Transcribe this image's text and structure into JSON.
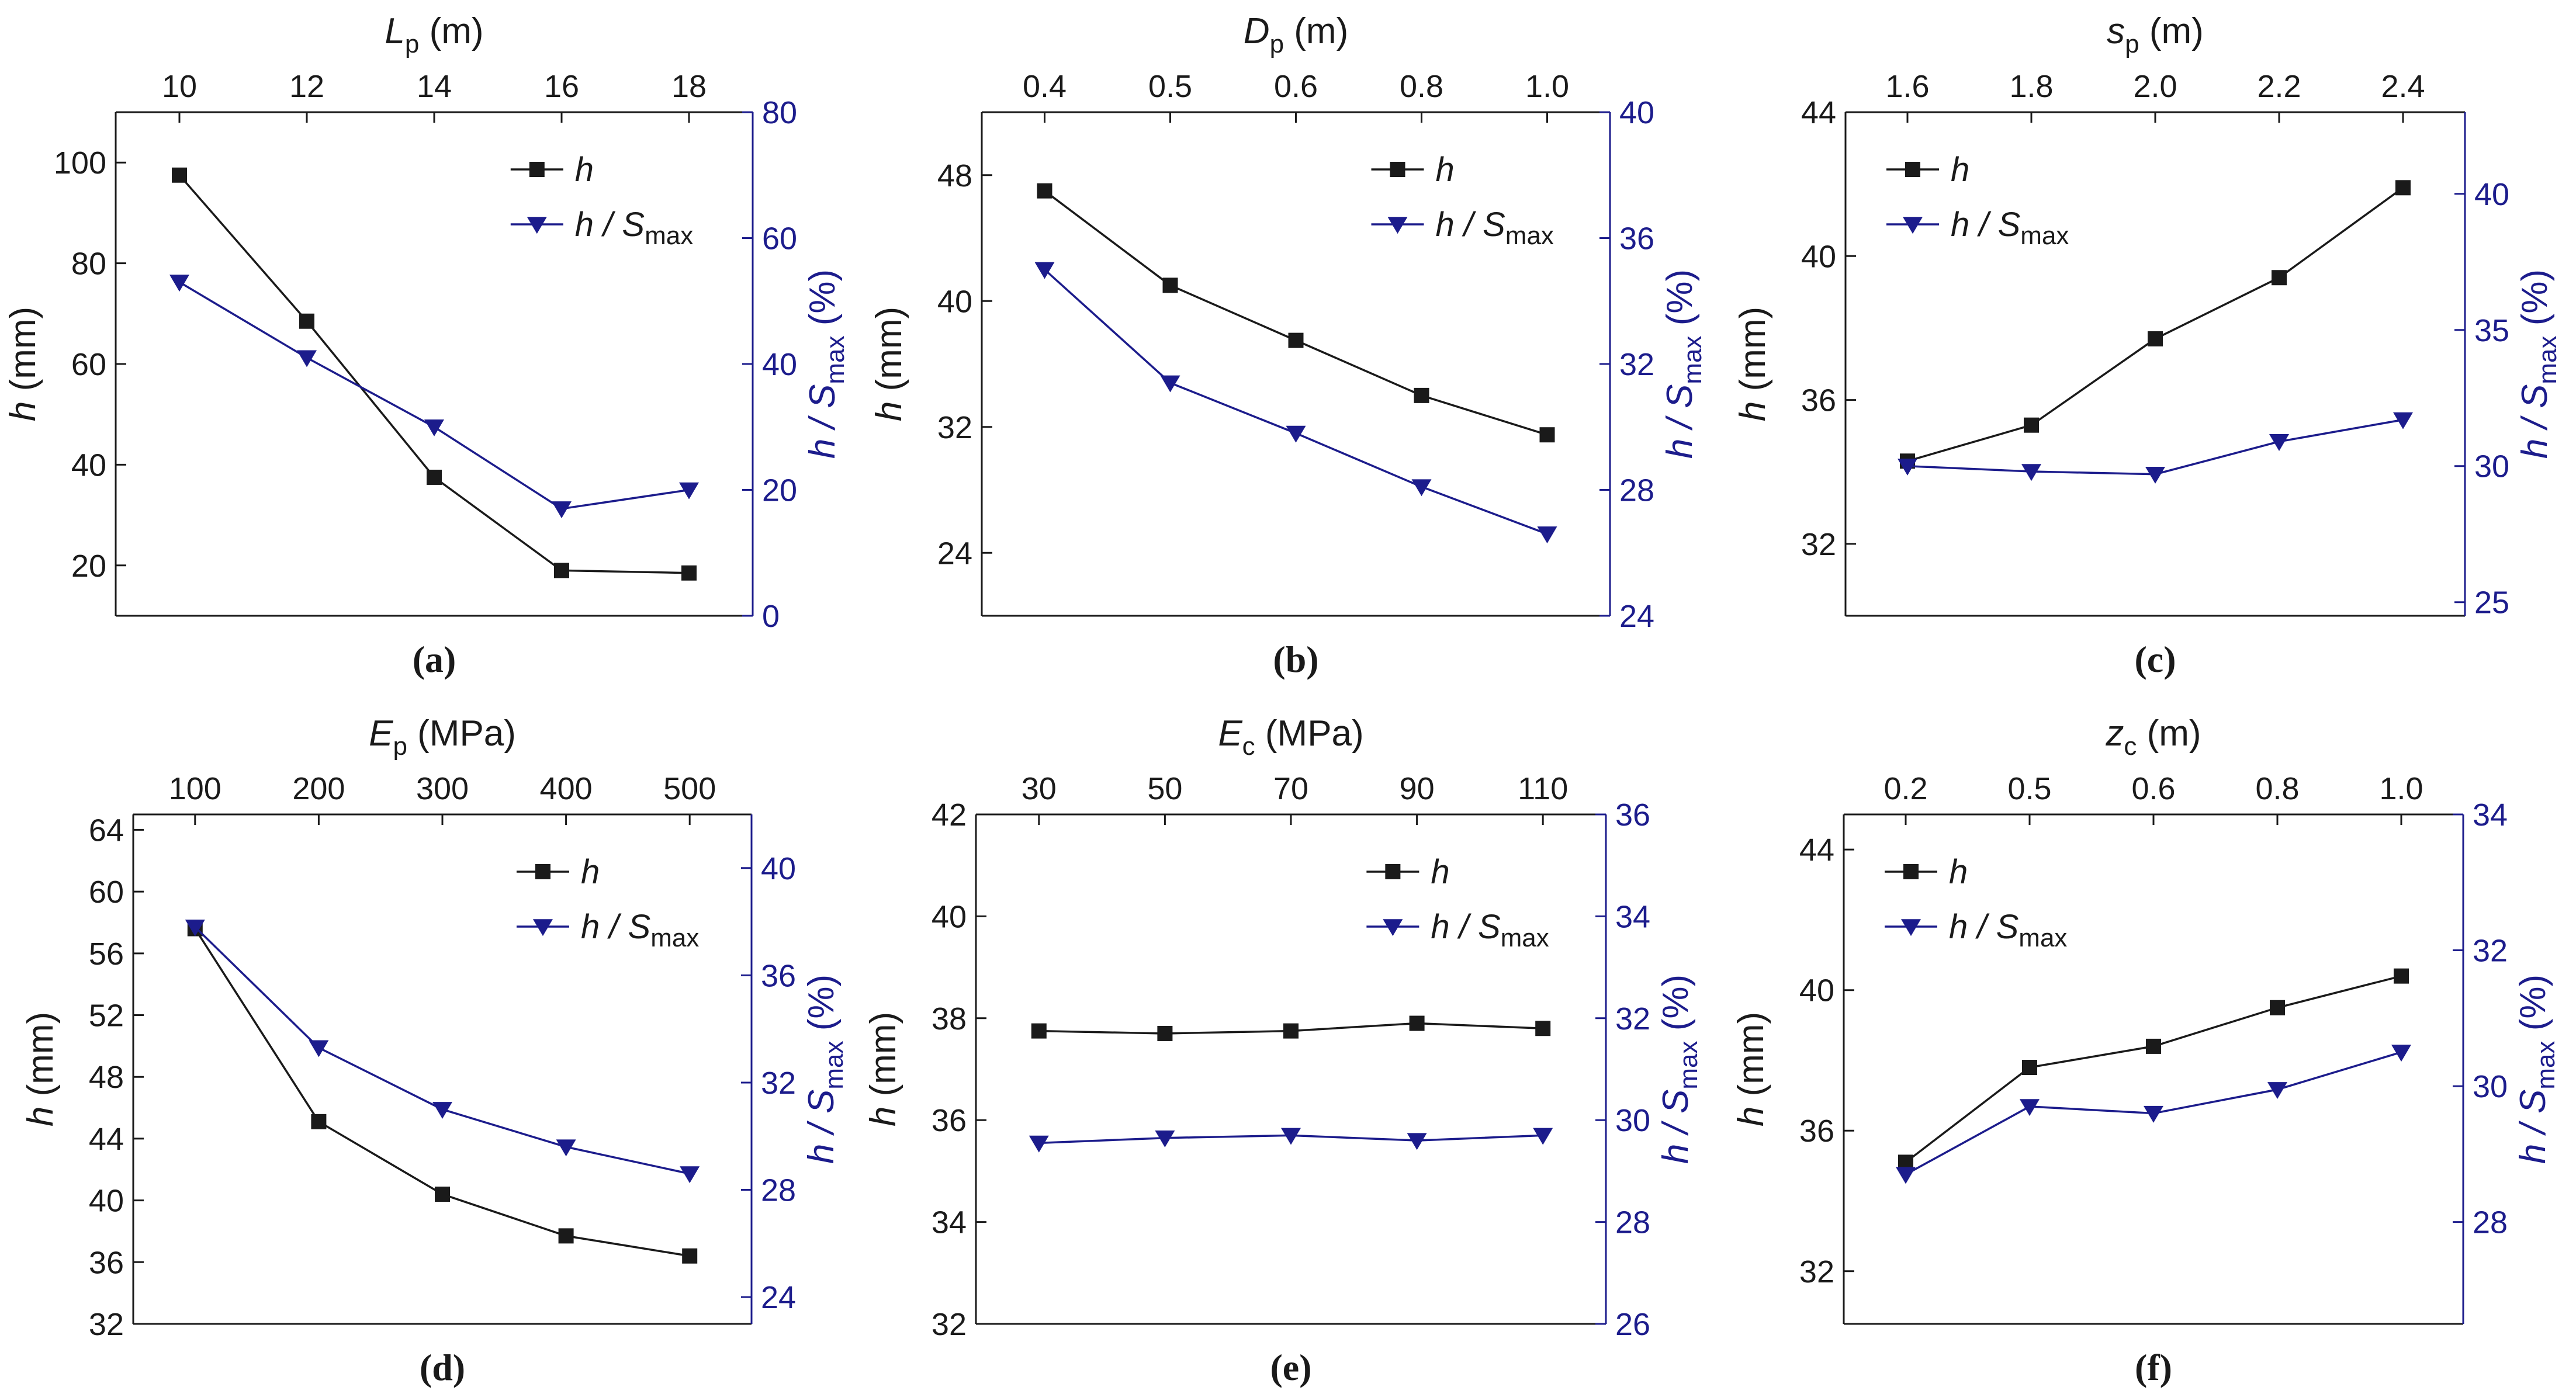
{
  "colors": {
    "h": "#1a1a1a",
    "ratio": "#1c1c8c",
    "axis_left": "#1a1a1a",
    "axis_right": "#1c1c8c"
  },
  "legend": {
    "h": "h",
    "ratio": "h / S",
    "ratio_sub": "max"
  },
  "chart_data": [
    {
      "id": "a",
      "panel_label": "(a)",
      "type": "line",
      "top_label": {
        "main": "L",
        "sub": "p",
        "unit": " (m)"
      },
      "top_ticks": [
        "10",
        "12",
        "14",
        "16",
        "18"
      ],
      "left_label": "h (mm)",
      "left_ticks": [
        20,
        40,
        60,
        80,
        100
      ],
      "left_lim": [
        10,
        110
      ],
      "right_label": {
        "pre": "h / S",
        "sub": "max",
        "unit": " (%)"
      },
      "right_ticks": [
        0,
        20,
        40,
        60,
        80
      ],
      "right_lim": [
        0,
        80
      ],
      "legend_position": "top-right",
      "series": [
        {
          "name": "h",
          "axis": "left",
          "marker": "square",
          "values": [
            97.5,
            68.5,
            37.5,
            19,
            18.5
          ]
        },
        {
          "name": "h / Smax",
          "axis": "right",
          "marker": "triangle-down",
          "values": [
            53,
            41,
            30,
            17,
            20
          ]
        }
      ]
    },
    {
      "id": "b",
      "panel_label": "(b)",
      "type": "line",
      "top_label": {
        "main": "D",
        "sub": "p",
        "unit": " (m)"
      },
      "top_ticks": [
        "0.4",
        "0.5",
        "0.6",
        "0.8",
        "1.0"
      ],
      "left_label": "h (mm)",
      "left_ticks": [
        24,
        32,
        40,
        48
      ],
      "left_lim": [
        20,
        52
      ],
      "right_label": {
        "pre": "h / S",
        "sub": "max",
        "unit": " (%)"
      },
      "right_ticks": [
        24,
        28,
        32,
        36,
        40
      ],
      "right_lim": [
        24,
        40
      ],
      "legend_position": "top-right",
      "series": [
        {
          "name": "h",
          "axis": "left",
          "marker": "square",
          "values": [
            47,
            41,
            37.5,
            34,
            31.5
          ]
        },
        {
          "name": "h / Smax",
          "axis": "right",
          "marker": "triangle-down",
          "values": [
            35,
            31.4,
            29.8,
            28.1,
            26.6
          ]
        }
      ]
    },
    {
      "id": "c",
      "panel_label": "(c)",
      "type": "line",
      "top_label": {
        "main": "s",
        "sub": "p",
        "unit": " (m)"
      },
      "top_ticks": [
        "1.6",
        "1.8",
        "2.0",
        "2.2",
        "2.4"
      ],
      "left_label": "h (mm)",
      "left_ticks": [
        32,
        36,
        40,
        44
      ],
      "left_lim": [
        30,
        44
      ],
      "right_label": {
        "pre": "h / S",
        "sub": "max",
        "unit": " (%)"
      },
      "right_ticks": [
        25,
        30,
        35,
        40
      ],
      "right_lim": [
        24.5,
        43
      ],
      "legend_position": "top-left",
      "series": [
        {
          "name": "h",
          "axis": "left",
          "marker": "square",
          "values": [
            34.3,
            35.3,
            37.7,
            39.4,
            41.9
          ]
        },
        {
          "name": "h / Smax",
          "axis": "right",
          "marker": "triangle-down",
          "values": [
            30,
            29.8,
            29.7,
            30.9,
            31.7
          ]
        }
      ]
    },
    {
      "id": "d",
      "panel_label": "(d)",
      "type": "line",
      "top_label": {
        "main": "E",
        "sub": "p",
        "unit": " (MPa)"
      },
      "top_ticks": [
        "100",
        "200",
        "300",
        "400",
        "500"
      ],
      "left_label": "h (mm)",
      "left_ticks": [
        32,
        36,
        40,
        44,
        48,
        52,
        56,
        60,
        64
      ],
      "left_lim": [
        32,
        65
      ],
      "right_label": {
        "pre": "h / S",
        "sub": "max",
        "unit": " (%)"
      },
      "right_ticks": [
        24,
        28,
        32,
        36,
        40
      ],
      "right_lim": [
        23,
        42
      ],
      "legend_position": "top-right",
      "series": [
        {
          "name": "h",
          "axis": "left",
          "marker": "square",
          "values": [
            57.6,
            45.1,
            40.4,
            37.7,
            36.4
          ]
        },
        {
          "name": "h / Smax",
          "axis": "right",
          "marker": "triangle-down",
          "values": [
            37.8,
            33.3,
            31,
            29.6,
            28.6
          ]
        }
      ]
    },
    {
      "id": "e",
      "panel_label": "(e)",
      "type": "line",
      "top_label": {
        "main": "E",
        "sub": "c",
        "unit": " (MPa)"
      },
      "top_ticks": [
        "30",
        "50",
        "70",
        "90",
        "110"
      ],
      "left_label": "h (mm)",
      "left_ticks": [
        32,
        34,
        36,
        38,
        40,
        42
      ],
      "left_lim": [
        32,
        42
      ],
      "right_label": {
        "pre": "h / S",
        "sub": "max",
        "unit": " (%)"
      },
      "right_ticks": [
        26,
        28,
        30,
        32,
        34,
        36
      ],
      "right_lim": [
        26,
        36
      ],
      "legend_position": "top-right",
      "series": [
        {
          "name": "h",
          "axis": "left",
          "marker": "square",
          "values": [
            37.75,
            37.7,
            37.75,
            37.9,
            37.8
          ]
        },
        {
          "name": "h / Smax",
          "axis": "right",
          "marker": "triangle-down",
          "values": [
            29.55,
            29.65,
            29.7,
            29.6,
            29.7
          ]
        }
      ]
    },
    {
      "id": "f",
      "panel_label": "(f)",
      "type": "line",
      "top_label": {
        "main": "z",
        "sub": "c",
        "unit": " (m)"
      },
      "top_ticks": [
        "0.2",
        "0.5",
        "0.6",
        "0.8",
        "1.0"
      ],
      "left_label": "h (mm)",
      "left_ticks": [
        32,
        36,
        40,
        44
      ],
      "left_lim": [
        30.5,
        45
      ],
      "right_label": {
        "pre": "h / S",
        "sub": "max",
        "unit": " (%)"
      },
      "right_ticks": [
        28,
        30,
        32,
        34
      ],
      "right_lim": [
        26.5,
        34
      ],
      "legend_position": "top-left",
      "series": [
        {
          "name": "h",
          "axis": "left",
          "marker": "square",
          "values": [
            35.1,
            37.8,
            38.4,
            39.5,
            40.4
          ]
        },
        {
          "name": "h / Smax",
          "axis": "right",
          "marker": "triangle-down",
          "values": [
            28.7,
            29.7,
            29.6,
            29.95,
            30.5
          ]
        }
      ]
    }
  ]
}
